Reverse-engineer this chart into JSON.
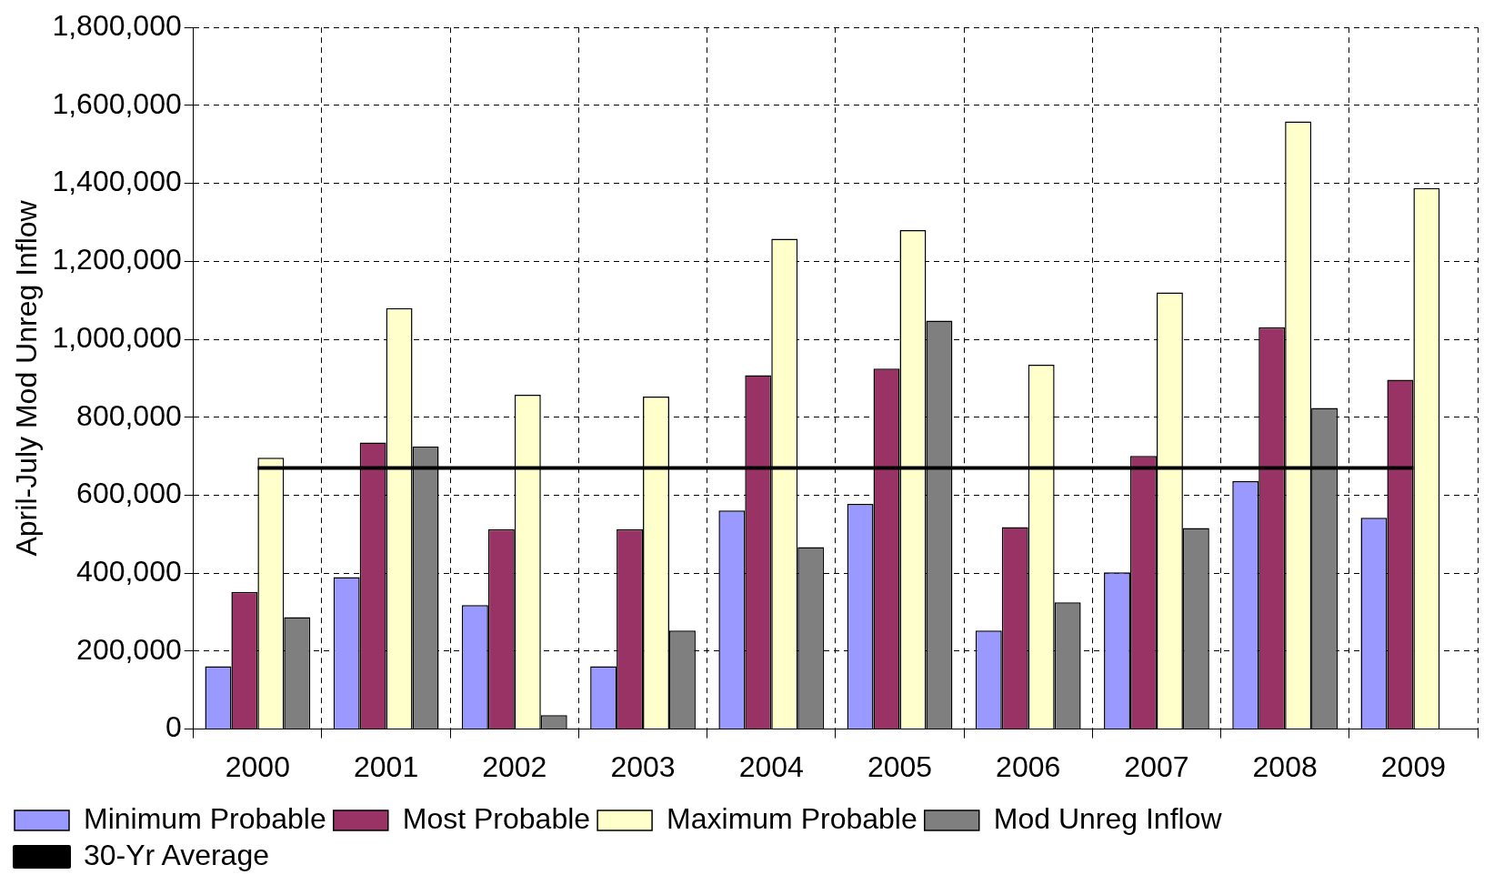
{
  "chart_data": {
    "type": "bar",
    "ylabel": "April-July Mod Unreg Inflow",
    "categories": [
      "2000",
      "2001",
      "2002",
      "2003",
      "2004",
      "2005",
      "2006",
      "2007",
      "2008",
      "2009"
    ],
    "series": [
      {
        "name": "Minimum Probable",
        "color": "#9999ff",
        "values": [
          161000,
          390000,
          318000,
          161000,
          561000,
          578000,
          253000,
          402000,
          636000,
          542000
        ]
      },
      {
        "name": "Most Probable",
        "color": "#993366",
        "values": [
          352000,
          735000,
          513000,
          513000,
          908000,
          925000,
          518000,
          701000,
          1031000,
          896000
        ]
      },
      {
        "name": "Maximum Probable",
        "color": "#ffffcc",
        "values": [
          696000,
          1080000,
          858000,
          853000,
          1258000,
          1280000,
          935000,
          1120000,
          1559000,
          1388000
        ]
      },
      {
        "name": "Mod Unreg Inflow",
        "color": "#7f7f7f",
        "values": [
          287000,
          725000,
          36000,
          253000,
          467000,
          1048000,
          325000,
          516000,
          824000,
          null
        ]
      },
      {
        "name": "30-Yr Average",
        "type": "line",
        "color": "#000000",
        "values": [
          670000,
          670000,
          670000,
          670000,
          670000,
          670000,
          670000,
          670000,
          670000,
          670000
        ]
      }
    ],
    "ylim": [
      0,
      1800000
    ],
    "yticks": [
      0,
      {
        "value": 200000,
        "label": "200,000"
      },
      {
        "value": 400000,
        "label": "400,000"
      },
      {
        "value": 600000,
        "label": "600,000"
      },
      {
        "value": 800000,
        "label": "800,000"
      },
      {
        "value": 1000000,
        "label": "1,000,000"
      },
      {
        "value": 1200000,
        "label": "1,200,000"
      },
      {
        "value": 1400000,
        "label": "1,400,000"
      },
      {
        "value": 1600000,
        "label": "1,600,000"
      },
      {
        "value": 1800000,
        "label": "1,800,000"
      }
    ],
    "grid": true,
    "legend": "bottom",
    "line_style": "solid",
    "marker": "none"
  }
}
